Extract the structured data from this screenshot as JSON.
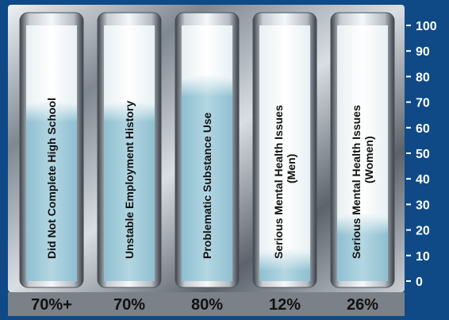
{
  "chart_data": {
    "type": "bar",
    "categories": [
      [
        "Did Not Complete High School"
      ],
      [
        "Unstable Employment History"
      ],
      [
        "Problematic Substance Use"
      ],
      [
        "Serious Mental Health Issues",
        "(Men)"
      ],
      [
        "Serious Mental Health Issues",
        "(Women)"
      ]
    ],
    "values": [
      70,
      70,
      80,
      12,
      26
    ],
    "value_labels": [
      "70%+",
      "70%",
      "80%",
      "12%",
      "26%"
    ],
    "y_ticks": [
      "0",
      "10",
      "20",
      "30",
      "40",
      "50",
      "60",
      "70",
      "80",
      "90",
      "100"
    ],
    "ylim": [
      0,
      100
    ],
    "title": "",
    "xlabel": "",
    "ylabel": "",
    "grid": false,
    "legend": "none"
  },
  "colors": {
    "background": "#0f4a86",
    "fill": "#a6cddb",
    "tube_empty": "#ffffff",
    "label_text": "#111111",
    "axis_text": "#ffffff"
  }
}
